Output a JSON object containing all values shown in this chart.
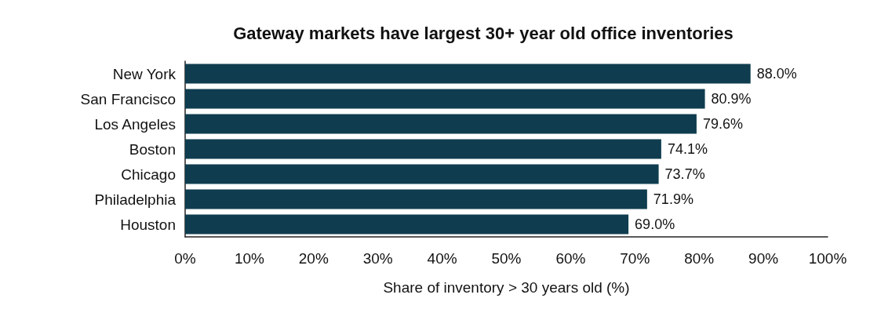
{
  "chart_data": {
    "type": "bar",
    "orientation": "horizontal",
    "title": "Gateway markets have largest 30+ year old office inventories",
    "xlabel": "Share of inventory > 30 years old (%)",
    "categories": [
      "New York",
      "San Francisco",
      "Los Angeles",
      "Boston",
      "Chicago",
      "Philadelphia",
      "Houston"
    ],
    "series": [
      {
        "color": "#0f3d4f",
        "values": [
          88.0,
          80.9,
          79.6,
          74.1,
          73.7,
          71.9,
          69.0
        ],
        "value_labels": [
          "88.0%",
          "80.9%",
          "79.6%",
          "74.1%",
          "73.7%",
          "71.9%",
          "69.0%"
        ]
      }
    ],
    "xlim": [
      0,
      100
    ],
    "xticks": [
      {
        "value": 0,
        "label": "0%"
      },
      {
        "value": 10,
        "label": "10%"
      },
      {
        "value": 20,
        "label": "20%"
      },
      {
        "value": 30,
        "label": "30%"
      },
      {
        "value": 40,
        "label": "40%"
      },
      {
        "value": 50,
        "label": "50%"
      },
      {
        "value": 60,
        "label": "60%"
      },
      {
        "value": 70,
        "label": "70%"
      },
      {
        "value": 80,
        "label": "80%"
      },
      {
        "value": 90,
        "label": "90%"
      },
      {
        "value": 100,
        "label": "100%"
      }
    ],
    "grid": false
  }
}
